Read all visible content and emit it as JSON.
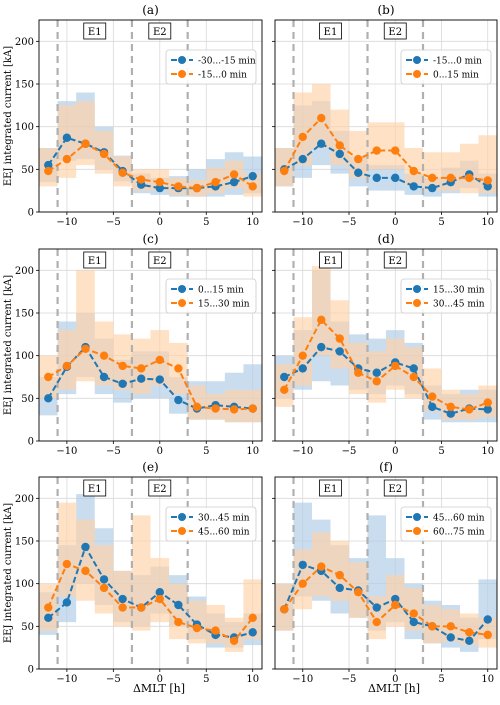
{
  "figure": {
    "xlabel": "ΔMLT [h]",
    "ylabel": "EEJ integrated current [kA]",
    "xticks": [
      "−10",
      "−5",
      "0",
      "5",
      "10"
    ],
    "yticks": [
      "0",
      "50",
      "100",
      "150",
      "200"
    ],
    "region_labels": [
      "E1",
      "E2"
    ]
  },
  "colors": {
    "blue": "#1f77b4",
    "orange": "#ff7f0e",
    "blue_fill": "#aecbe6",
    "orange_fill": "#ffd1a6",
    "dashed": "#b0b0b0",
    "grid": "#d9d9d9"
  },
  "chart_data": [
    {
      "type": "line",
      "panel_label": "(a)",
      "xlim": [
        -13,
        11
      ],
      "ylim": [
        0,
        225
      ],
      "x": [
        -12,
        -10,
        -8,
        -6,
        -4,
        -2,
        0,
        2,
        4,
        6,
        8,
        10
      ],
      "legend_position": "upper right",
      "series": [
        {
          "name": "-30...-15 min",
          "color": "blue",
          "values": [
            55,
            87,
            80,
            70,
            48,
            32,
            28,
            28,
            28,
            30,
            35,
            42
          ],
          "lower": [
            35,
            60,
            62,
            50,
            36,
            22,
            20,
            18,
            18,
            18,
            20,
            22
          ],
          "upper": [
            75,
            130,
            140,
            100,
            66,
            45,
            40,
            42,
            50,
            62,
            70,
            65
          ]
        },
        {
          "name": "-15...0 min",
          "color": "orange",
          "values": [
            48,
            62,
            80,
            68,
            46,
            38,
            35,
            30,
            28,
            35,
            44,
            30
          ],
          "lower": [
            30,
            40,
            55,
            45,
            30,
            25,
            25,
            20,
            18,
            22,
            28,
            18
          ],
          "upper": [
            75,
            125,
            130,
            95,
            65,
            50,
            50,
            40,
            38,
            52,
            60,
            45
          ]
        }
      ]
    },
    {
      "type": "line",
      "panel_label": "(b)",
      "xlim": [
        -13,
        11
      ],
      "ylim": [
        0,
        225
      ],
      "x": [
        -12,
        -10,
        -8,
        -6,
        -4,
        -2,
        0,
        2,
        4,
        6,
        8,
        10
      ],
      "legend_position": "upper right",
      "series": [
        {
          "name": "-15...0 min",
          "color": "blue",
          "values": [
            50,
            62,
            80,
            68,
            46,
            40,
            40,
            30,
            28,
            35,
            44,
            30
          ],
          "lower": [
            30,
            40,
            55,
            45,
            30,
            25,
            25,
            20,
            18,
            22,
            28,
            18
          ],
          "upper": [
            75,
            125,
            130,
            95,
            65,
            55,
            55,
            45,
            40,
            52,
            60,
            45
          ]
        },
        {
          "name": "0...15 min",
          "color": "orange",
          "values": [
            48,
            88,
            110,
            78,
            62,
            72,
            72,
            48,
            40,
            40,
            40,
            37
          ],
          "lower": [
            30,
            55,
            75,
            55,
            40,
            50,
            50,
            32,
            25,
            25,
            22,
            22
          ],
          "upper": [
            75,
            140,
            150,
            120,
            95,
            105,
            105,
            75,
            70,
            70,
            80,
            90
          ]
        }
      ]
    },
    {
      "type": "line",
      "panel_label": "(c)",
      "xlim": [
        -13,
        11
      ],
      "ylim": [
        0,
        225
      ],
      "x": [
        -12,
        -10,
        -8,
        -6,
        -4,
        -2,
        0,
        2,
        4,
        6,
        8,
        10
      ],
      "legend_position": "upper right",
      "series": [
        {
          "name": "0...15 min",
          "color": "blue",
          "values": [
            50,
            87,
            110,
            75,
            67,
            73,
            72,
            48,
            38,
            42,
            40,
            38
          ],
          "lower": [
            30,
            55,
            75,
            55,
            45,
            50,
            50,
            32,
            25,
            25,
            22,
            22
          ],
          "upper": [
            75,
            140,
            150,
            120,
            95,
            105,
            105,
            75,
            70,
            70,
            80,
            90
          ]
        },
        {
          "name": "15...30 min",
          "color": "orange",
          "values": [
            75,
            88,
            108,
            100,
            88,
            85,
            95,
            85,
            40,
            38,
            37,
            38
          ],
          "lower": [
            50,
            60,
            70,
            65,
            60,
            55,
            65,
            55,
            25,
            25,
            22,
            22
          ],
          "upper": [
            100,
            130,
            200,
            140,
            125,
            120,
            130,
            115,
            65,
            55,
            60,
            60
          ]
        }
      ]
    },
    {
      "type": "line",
      "panel_label": "(d)",
      "xlim": [
        -13,
        11
      ],
      "ylim": [
        0,
        225
      ],
      "x": [
        -12,
        -10,
        -8,
        -6,
        -4,
        -2,
        0,
        2,
        4,
        6,
        8,
        10
      ],
      "legend_position": "upper right",
      "series": [
        {
          "name": "15...30 min",
          "color": "blue",
          "values": [
            75,
            85,
            110,
            105,
            85,
            80,
            92,
            85,
            40,
            32,
            38,
            37
          ],
          "lower": [
            50,
            60,
            70,
            65,
            60,
            55,
            65,
            55,
            25,
            22,
            22,
            22
          ],
          "upper": [
            100,
            130,
            200,
            140,
            125,
            120,
            130,
            115,
            65,
            55,
            60,
            60
          ]
        },
        {
          "name": "30...45 min",
          "color": "orange",
          "values": [
            60,
            100,
            142,
            120,
            80,
            70,
            88,
            75,
            52,
            40,
            37,
            45
          ],
          "lower": [
            40,
            65,
            100,
            85,
            55,
            45,
            60,
            50,
            35,
            25,
            25,
            28
          ],
          "upper": [
            90,
            145,
            205,
            165,
            115,
            105,
            120,
            110,
            85,
            60,
            55,
            65
          ]
        }
      ]
    },
    {
      "type": "line",
      "panel_label": "(e)",
      "xlim": [
        -13,
        11
      ],
      "ylim": [
        0,
        225
      ],
      "x": [
        -12,
        -10,
        -8,
        -6,
        -4,
        -2,
        0,
        2,
        4,
        6,
        8,
        10
      ],
      "legend_position": "upper right",
      "series": [
        {
          "name": "30...45 min",
          "color": "blue",
          "values": [
            60,
            78,
            143,
            105,
            82,
            72,
            90,
            75,
            52,
            40,
            37,
            43
          ],
          "lower": [
            40,
            55,
            100,
            75,
            55,
            50,
            65,
            50,
            35,
            25,
            25,
            28
          ],
          "upper": [
            90,
            145,
            205,
            165,
            115,
            110,
            120,
            110,
            85,
            65,
            55,
            65
          ]
        },
        {
          "name": "45...60 min",
          "color": "orange",
          "values": [
            72,
            123,
            115,
            95,
            72,
            72,
            82,
            55,
            48,
            45,
            33,
            60
          ],
          "lower": [
            45,
            85,
            80,
            65,
            50,
            45,
            55,
            35,
            30,
            30,
            20,
            35
          ],
          "upper": [
            100,
            195,
            175,
            145,
            115,
            180,
            130,
            100,
            80,
            75,
            60,
            105
          ]
        }
      ]
    },
    {
      "type": "line",
      "panel_label": "(f)",
      "xlim": [
        -13,
        11
      ],
      "ylim": [
        0,
        225
      ],
      "x": [
        -12,
        -10,
        -8,
        -6,
        -4,
        -2,
        0,
        2,
        4,
        6,
        8,
        10
      ],
      "legend_position": "upper right",
      "series": [
        {
          "name": "45...60 min",
          "color": "blue",
          "values": [
            70,
            122,
            115,
            95,
            92,
            72,
            82,
            55,
            50,
            37,
            33,
            58
          ],
          "lower": [
            45,
            85,
            80,
            65,
            60,
            45,
            55,
            35,
            30,
            25,
            20,
            35
          ],
          "upper": [
            100,
            195,
            175,
            145,
            130,
            180,
            130,
            100,
            80,
            75,
            60,
            105
          ]
        },
        {
          "name": "60...75 min",
          "color": "orange",
          "values": [
            70,
            100,
            120,
            110,
            90,
            55,
            75,
            65,
            50,
            50,
            43,
            40
          ],
          "lower": [
            45,
            70,
            85,
            80,
            60,
            35,
            50,
            45,
            30,
            32,
            28,
            25
          ],
          "upper": [
            100,
            140,
            160,
            150,
            125,
            85,
            110,
            95,
            75,
            70,
            65,
            60
          ]
        }
      ]
    }
  ]
}
